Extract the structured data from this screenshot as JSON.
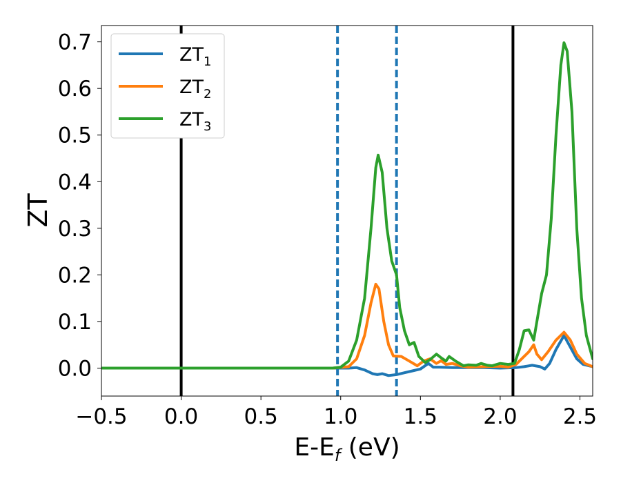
{
  "chart_data": {
    "type": "line",
    "xlabel": "E-E",
    "xlabel_subscript": "f",
    "xlabel_unit": " (eV)",
    "ylabel": "ZT",
    "xlim": [
      -0.5,
      2.58
    ],
    "ylim": [
      -0.06,
      0.735
    ],
    "xticks": [
      -0.5,
      0.0,
      0.5,
      1.0,
      1.5,
      2.0,
      2.5
    ],
    "xtick_labels": [
      "−0.5",
      "0.0",
      "0.5",
      "1.0",
      "1.5",
      "2.0",
      "2.5"
    ],
    "yticks": [
      0.0,
      0.1,
      0.2,
      0.3,
      0.4,
      0.5,
      0.6,
      0.7
    ],
    "ytick_labels": [
      "0.0",
      "0.1",
      "0.2",
      "0.3",
      "0.4",
      "0.5",
      "0.6",
      "0.7"
    ],
    "grid": false,
    "legend_position": "top-left",
    "vlines": [
      {
        "x": 0.0,
        "style": "solid",
        "color": "#000000"
      },
      {
        "x": 2.08,
        "style": "solid",
        "color": "#000000"
      },
      {
        "x": 0.98,
        "style": "dashed",
        "color": "#1f77b4"
      },
      {
        "x": 1.35,
        "style": "dashed",
        "color": "#1f77b4"
      }
    ],
    "series": [
      {
        "name": "ZT",
        "name_subscript": "1",
        "color": "#1f77b4",
        "points": [
          [
            -0.5,
            0
          ],
          [
            0.95,
            0
          ],
          [
            1.05,
            0.0
          ],
          [
            1.1,
            0.001
          ],
          [
            1.15,
            -0.004
          ],
          [
            1.2,
            -0.012
          ],
          [
            1.23,
            -0.014
          ],
          [
            1.26,
            -0.012
          ],
          [
            1.3,
            -0.016
          ],
          [
            1.35,
            -0.014
          ],
          [
            1.4,
            -0.01
          ],
          [
            1.45,
            -0.006
          ],
          [
            1.5,
            -0.002
          ],
          [
            1.55,
            0.01
          ],
          [
            1.58,
            0.002
          ],
          [
            1.62,
            0.002
          ],
          [
            1.7,
            0.001
          ],
          [
            1.8,
            0.001
          ],
          [
            1.9,
            0.001
          ],
          [
            2.0,
            0.0
          ],
          [
            2.1,
            0.001
          ],
          [
            2.15,
            0.003
          ],
          [
            2.2,
            0.006
          ],
          [
            2.25,
            0.003
          ],
          [
            2.28,
            -0.002
          ],
          [
            2.31,
            0.01
          ],
          [
            2.35,
            0.04
          ],
          [
            2.4,
            0.07
          ],
          [
            2.44,
            0.045
          ],
          [
            2.48,
            0.02
          ],
          [
            2.52,
            0.008
          ],
          [
            2.58,
            0.003
          ]
        ]
      },
      {
        "name": "ZT",
        "name_subscript": "2",
        "color": "#ff7f0e",
        "points": [
          [
            -0.5,
            0
          ],
          [
            0.95,
            0
          ],
          [
            1.05,
            0.003
          ],
          [
            1.1,
            0.02
          ],
          [
            1.15,
            0.07
          ],
          [
            1.19,
            0.14
          ],
          [
            1.22,
            0.18
          ],
          [
            1.24,
            0.17
          ],
          [
            1.27,
            0.1
          ],
          [
            1.3,
            0.05
          ],
          [
            1.33,
            0.026
          ],
          [
            1.38,
            0.025
          ],
          [
            1.43,
            0.015
          ],
          [
            1.48,
            0.005
          ],
          [
            1.52,
            0.015
          ],
          [
            1.56,
            0.02
          ],
          [
            1.6,
            0.01
          ],
          [
            1.63,
            0.016
          ],
          [
            1.66,
            0.008
          ],
          [
            1.7,
            0.01
          ],
          [
            1.75,
            0.005
          ],
          [
            1.8,
            0.002
          ],
          [
            1.9,
            0.003
          ],
          [
            2.0,
            0.004
          ],
          [
            2.05,
            0.002
          ],
          [
            2.1,
            0.008
          ],
          [
            2.15,
            0.025
          ],
          [
            2.18,
            0.035
          ],
          [
            2.21,
            0.05
          ],
          [
            2.23,
            0.03
          ],
          [
            2.26,
            0.018
          ],
          [
            2.3,
            0.035
          ],
          [
            2.35,
            0.06
          ],
          [
            2.4,
            0.077
          ],
          [
            2.44,
            0.06
          ],
          [
            2.48,
            0.03
          ],
          [
            2.53,
            0.01
          ],
          [
            2.58,
            0.003
          ]
        ]
      },
      {
        "name": "ZT",
        "name_subscript": "3",
        "color": "#2ca02c",
        "points": [
          [
            -0.5,
            0
          ],
          [
            0.95,
            0
          ],
          [
            1.0,
            0.002
          ],
          [
            1.05,
            0.015
          ],
          [
            1.1,
            0.06
          ],
          [
            1.15,
            0.15
          ],
          [
            1.19,
            0.3
          ],
          [
            1.22,
            0.43
          ],
          [
            1.235,
            0.457
          ],
          [
            1.26,
            0.42
          ],
          [
            1.29,
            0.3
          ],
          [
            1.32,
            0.23
          ],
          [
            1.35,
            0.2
          ],
          [
            1.37,
            0.13
          ],
          [
            1.4,
            0.08
          ],
          [
            1.43,
            0.05
          ],
          [
            1.46,
            0.055
          ],
          [
            1.49,
            0.025
          ],
          [
            1.53,
            0.012
          ],
          [
            1.56,
            0.018
          ],
          [
            1.6,
            0.03
          ],
          [
            1.63,
            0.022
          ],
          [
            1.66,
            0.015
          ],
          [
            1.68,
            0.025
          ],
          [
            1.72,
            0.015
          ],
          [
            1.77,
            0.005
          ],
          [
            1.8,
            0.007
          ],
          [
            1.85,
            0.006
          ],
          [
            1.88,
            0.01
          ],
          [
            1.92,
            0.006
          ],
          [
            1.95,
            0.005
          ],
          [
            2.0,
            0.01
          ],
          [
            2.05,
            0.008
          ],
          [
            2.09,
            0.01
          ],
          [
            2.12,
            0.04
          ],
          [
            2.15,
            0.08
          ],
          [
            2.18,
            0.082
          ],
          [
            2.21,
            0.06
          ],
          [
            2.23,
            0.1
          ],
          [
            2.26,
            0.16
          ],
          [
            2.29,
            0.2
          ],
          [
            2.32,
            0.32
          ],
          [
            2.35,
            0.5
          ],
          [
            2.38,
            0.65
          ],
          [
            2.4,
            0.698
          ],
          [
            2.42,
            0.68
          ],
          [
            2.45,
            0.55
          ],
          [
            2.48,
            0.3
          ],
          [
            2.51,
            0.15
          ],
          [
            2.54,
            0.07
          ],
          [
            2.58,
            0.02
          ]
        ]
      }
    ]
  }
}
